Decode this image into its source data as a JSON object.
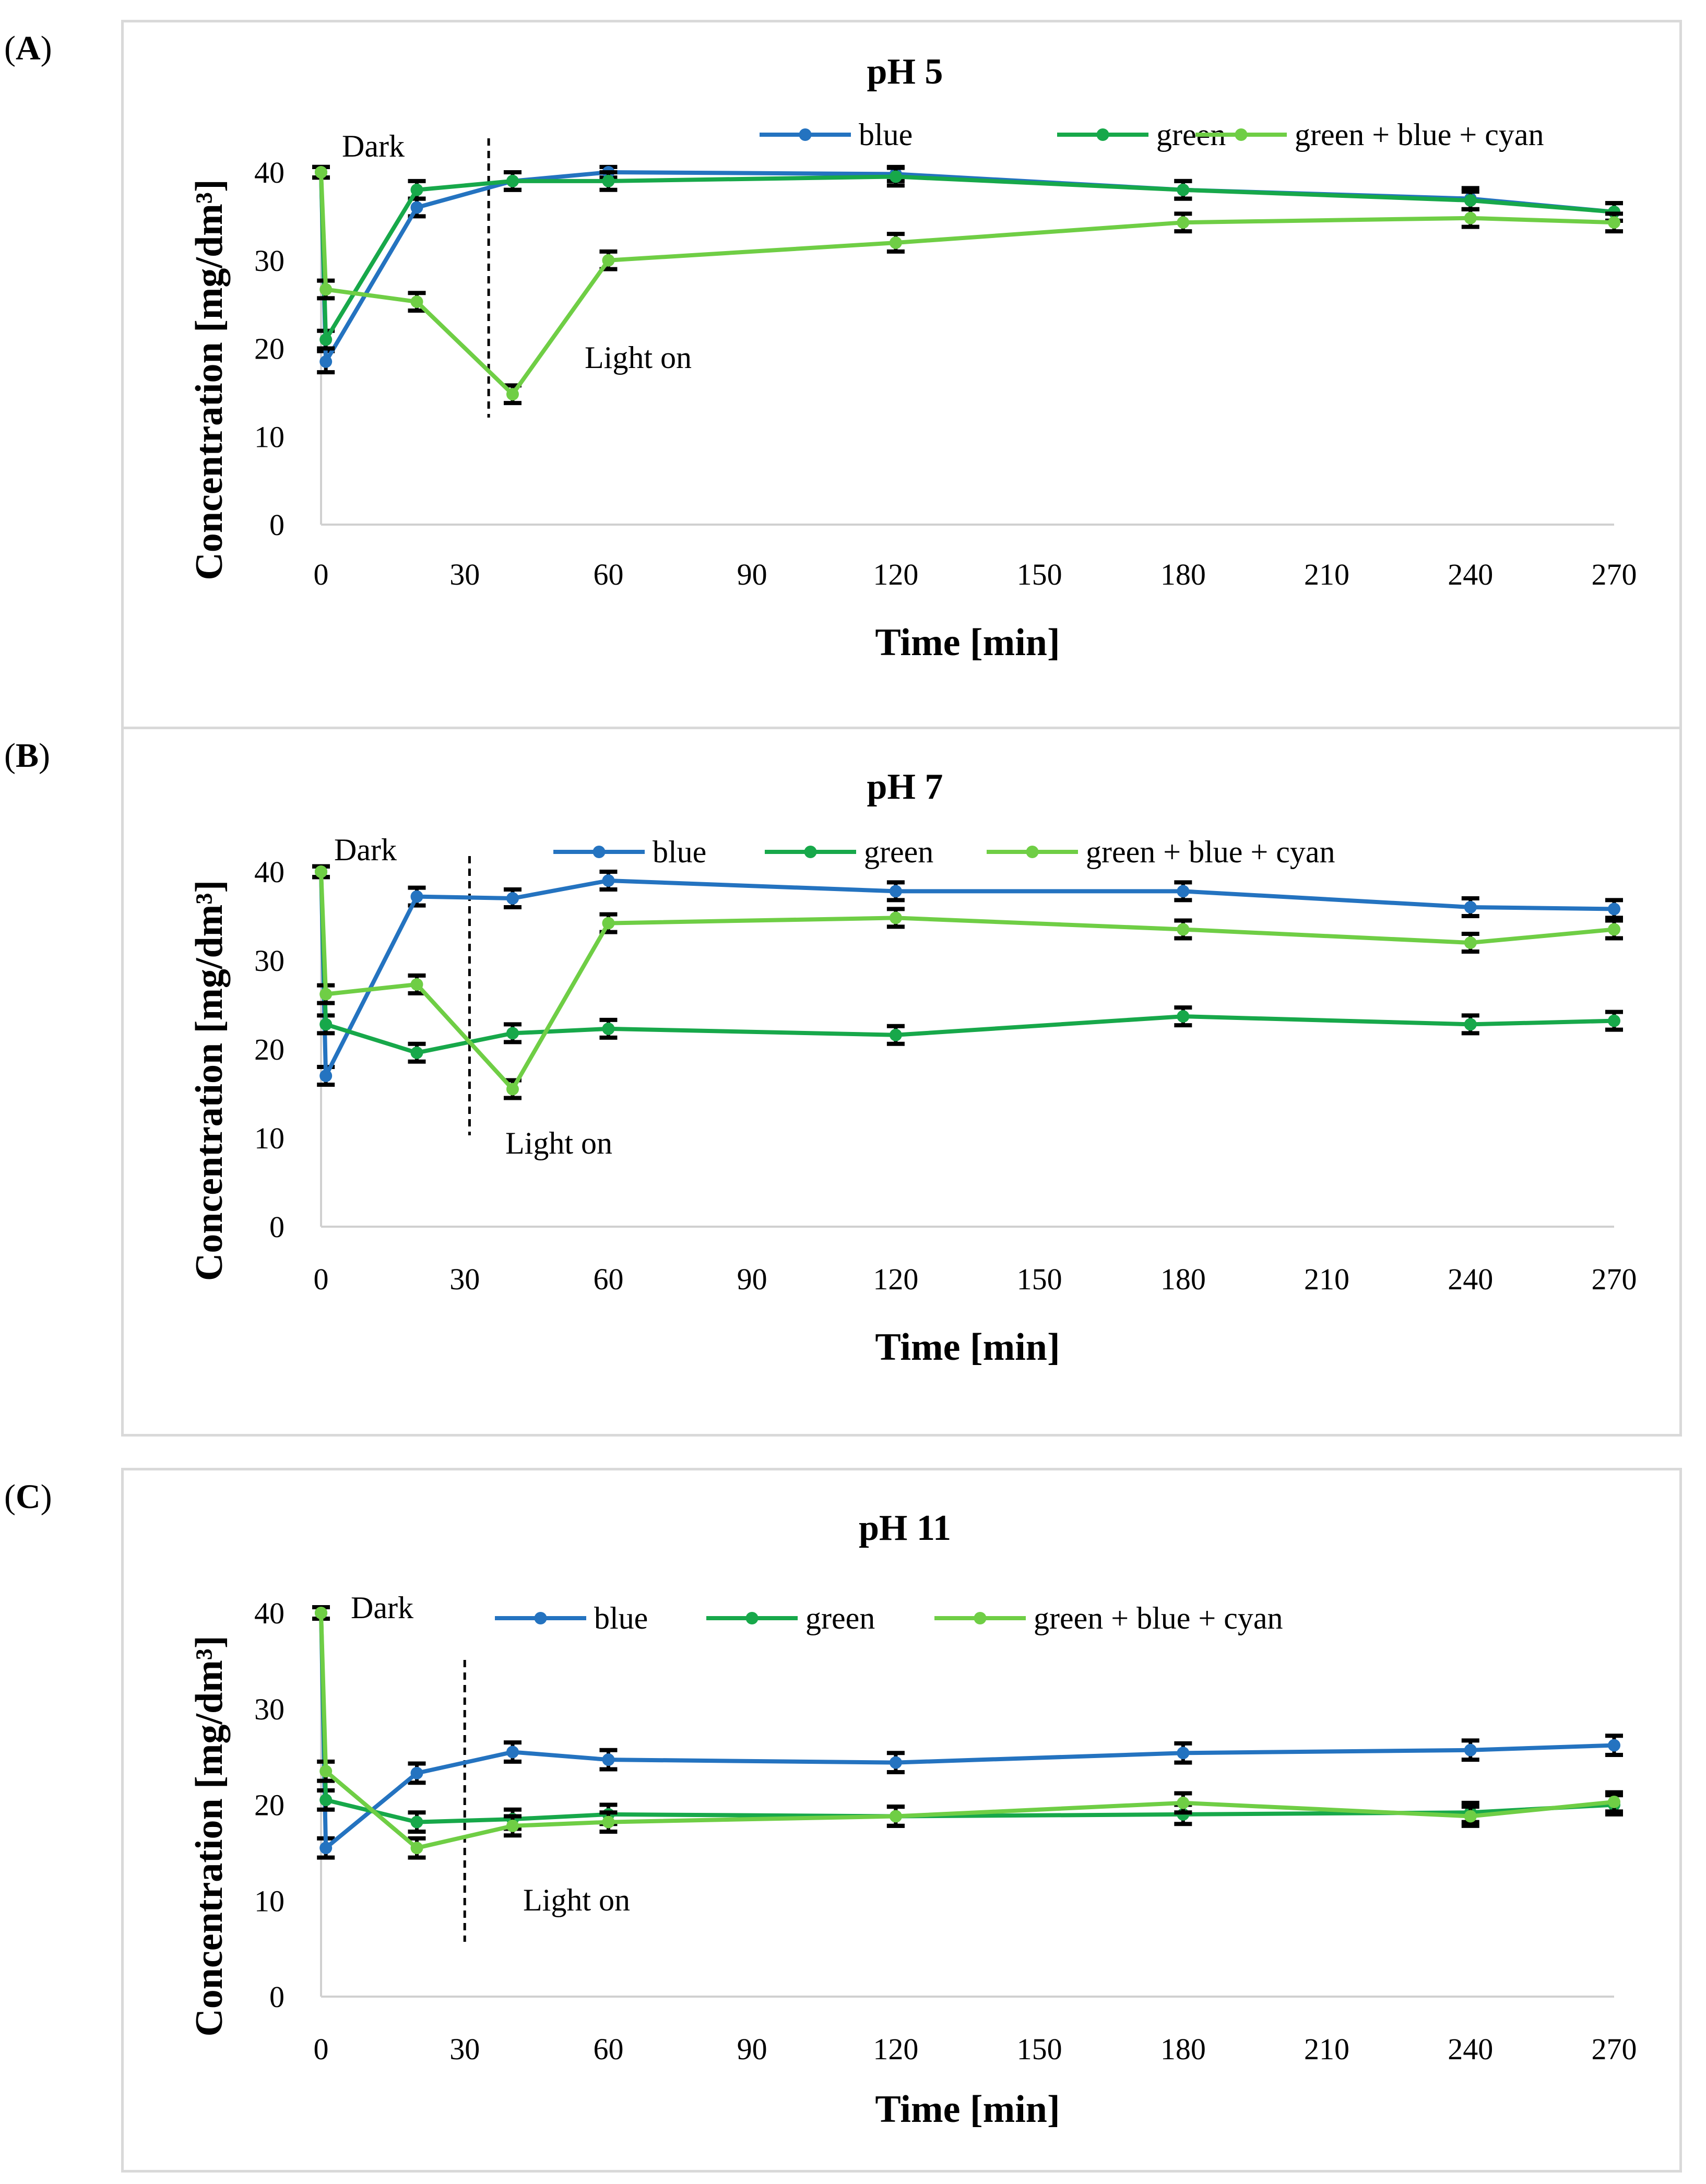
{
  "colors": {
    "blue": "#2473c0",
    "green": "#17a84a",
    "mix": "#6fce45",
    "error": "#000000",
    "grid_border": "#d9d9d9"
  },
  "chart_data": [
    {
      "panel_label": "A",
      "type": "line",
      "title": "pH 5",
      "xlabel": "Time [min]",
      "ylabel": "Concentration [mg/dm³]",
      "xlim": [
        0,
        270
      ],
      "ylim": [
        0,
        40
      ],
      "xticks": [
        0,
        30,
        60,
        90,
        120,
        150,
        180,
        210,
        240,
        270
      ],
      "yticks": [
        0,
        10,
        20,
        30,
        40
      ],
      "annotations": {
        "dark": "Dark",
        "light": "Light on",
        "light_line_x": 35
      },
      "legend": [
        "blue",
        "green",
        "green + blue + cyan"
      ],
      "series": [
        {
          "name": "blue",
          "color_key": "blue",
          "x": [
            0,
            1,
            20,
            40,
            60,
            120,
            180,
            240,
            270
          ],
          "y": [
            40,
            18.5,
            36,
            39,
            40,
            39.8,
            38,
            37,
            35.5
          ],
          "err": [
            0.6,
            1.2,
            1.0,
            1.0,
            0.6,
            0.8,
            1.0,
            1.2,
            1.0
          ]
        },
        {
          "name": "green",
          "color_key": "green",
          "x": [
            0,
            1,
            20,
            40,
            60,
            120,
            180,
            240,
            270
          ],
          "y": [
            40,
            21,
            38,
            39,
            39,
            39.5,
            38,
            36.8,
            35.5
          ],
          "err": [
            0.6,
            1.0,
            1.0,
            1.0,
            1.0,
            1.0,
            1.0,
            1.0,
            1.0
          ]
        },
        {
          "name": "green + blue + cyan",
          "color_key": "mix",
          "x": [
            0,
            1,
            20,
            40,
            60,
            120,
            180,
            240,
            270
          ],
          "y": [
            40,
            26.7,
            25.3,
            14.8,
            30,
            32,
            34.3,
            34.8,
            34.3
          ],
          "err": [
            0.6,
            1.0,
            1.0,
            1.0,
            1.0,
            1.0,
            1.0,
            1.0,
            1.0
          ]
        }
      ]
    },
    {
      "panel_label": "B",
      "type": "line",
      "title": "pH 7",
      "xlabel": "Time [min]",
      "ylabel": "Concentration [mg/dm³]",
      "xlim": [
        0,
        270
      ],
      "ylim": [
        0,
        40
      ],
      "xticks": [
        0,
        30,
        60,
        90,
        120,
        150,
        180,
        210,
        240,
        270
      ],
      "yticks": [
        0,
        10,
        20,
        30,
        40
      ],
      "annotations": {
        "dark": "Dark",
        "light": "Light on",
        "light_line_x": 31
      },
      "legend": [
        "blue",
        "green",
        "green + blue + cyan"
      ],
      "series": [
        {
          "name": "blue",
          "color_key": "blue",
          "x": [
            0,
            1,
            20,
            40,
            60,
            120,
            180,
            240,
            270
          ],
          "y": [
            40,
            17,
            37.2,
            37,
            39,
            37.8,
            37.8,
            36,
            35.8
          ],
          "err": [
            0.6,
            1.0,
            1.0,
            1.0,
            1.0,
            1.0,
            1.0,
            1.0,
            1.0
          ]
        },
        {
          "name": "green",
          "color_key": "green",
          "x": [
            0,
            1,
            20,
            40,
            60,
            120,
            180,
            240,
            270
          ],
          "y": [
            40,
            22.8,
            19.6,
            21.8,
            22.3,
            21.6,
            23.7,
            22.8,
            23.2
          ],
          "err": [
            0.6,
            1.0,
            1.0,
            1.0,
            1.0,
            1.0,
            1.0,
            1.0,
            1.0
          ]
        },
        {
          "name": "green + blue + cyan",
          "color_key": "mix",
          "x": [
            0,
            1,
            20,
            40,
            60,
            120,
            180,
            240,
            270
          ],
          "y": [
            40,
            26.2,
            27.3,
            15.5,
            34.2,
            34.8,
            33.5,
            32,
            33.5
          ],
          "err": [
            0.6,
            1.0,
            1.0,
            1.0,
            1.0,
            1.0,
            1.0,
            1.0,
            1.0
          ]
        }
      ]
    },
    {
      "panel_label": "C",
      "type": "line",
      "title": "pH 11",
      "xlabel": "Time [min]",
      "ylabel": "Concentration [mg/dm³]",
      "xlim": [
        0,
        270
      ],
      "ylim": [
        0,
        40
      ],
      "xticks": [
        0,
        30,
        60,
        90,
        120,
        150,
        180,
        210,
        240,
        270
      ],
      "yticks": [
        0,
        10,
        20,
        30,
        40
      ],
      "annotations": {
        "dark": "Dark",
        "light": "Light on",
        "light_line_x": 30
      },
      "legend": [
        "blue",
        "green",
        "green + blue + cyan"
      ],
      "series": [
        {
          "name": "blue",
          "color_key": "blue",
          "x": [
            0,
            1,
            20,
            40,
            60,
            120,
            180,
            240,
            270
          ],
          "y": [
            40,
            15.5,
            23.3,
            25.5,
            24.7,
            24.4,
            25.4,
            25.7,
            26.2
          ],
          "err": [
            0.6,
            1.0,
            1.0,
            1.0,
            1.0,
            1.0,
            1.0,
            1.0,
            1.0
          ]
        },
        {
          "name": "green",
          "color_key": "green",
          "x": [
            0,
            1,
            20,
            40,
            60,
            120,
            180,
            240,
            270
          ],
          "y": [
            40,
            20.5,
            18.2,
            18.5,
            19,
            18.8,
            19,
            19.2,
            20
          ],
          "err": [
            0.6,
            1.0,
            1.0,
            1.0,
            1.0,
            1.0,
            1.0,
            1.0,
            1.0
          ]
        },
        {
          "name": "green + blue + cyan",
          "color_key": "mix",
          "x": [
            0,
            1,
            20,
            40,
            60,
            120,
            180,
            240,
            270
          ],
          "y": [
            40,
            23.5,
            15.5,
            17.8,
            18.2,
            18.8,
            20.2,
            18.8,
            20.3
          ],
          "err": [
            0.6,
            1.0,
            1.0,
            1.0,
            1.0,
            1.0,
            1.0,
            1.0,
            1.0
          ]
        }
      ]
    }
  ]
}
